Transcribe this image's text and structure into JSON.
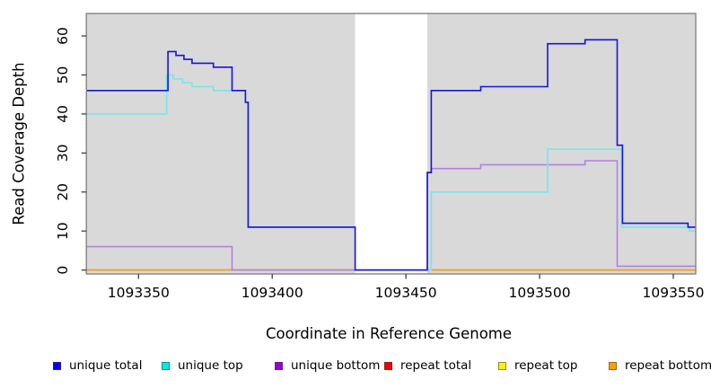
{
  "chart_data": {
    "type": "line",
    "subtype": "step",
    "title": "",
    "xlabel": "Coordinate in Reference Genome",
    "ylabel": "Read Coverage Depth",
    "x_ticks": [
      1093350,
      1093400,
      1093450,
      1093500,
      1093550
    ],
    "y_ticks": [
      0,
      10,
      20,
      30,
      40,
      50,
      60
    ],
    "xlim": [
      1093330,
      1093558
    ],
    "ylim": [
      0,
      66
    ],
    "x_end": 1093558.4,
    "grid": false,
    "panel_bg": "#d9d9d9",
    "panel_border": "#7d7d7d",
    "no_data_region": [
      1093431,
      1093458
    ],
    "legend_position": "bottom",
    "legend": [
      {
        "label": "unique total",
        "color": "#0404f0"
      },
      {
        "label": "unique top",
        "color": "#00e8f0"
      },
      {
        "label": "unique bottom",
        "color": "#9b00d0"
      },
      {
        "label": "repeat total",
        "color": "#f40000"
      },
      {
        "label": "repeat top",
        "color": "#fdf200"
      },
      {
        "label": "repeat bottom",
        "color": "#ff9e00"
      }
    ],
    "series": [
      {
        "name": "repeat total",
        "line_color": "#d03050",
        "steps": [
          [
            1093330,
            0
          ]
        ]
      },
      {
        "name": "repeat top",
        "line_color": "#f0e428",
        "steps": [
          [
            1093330,
            0
          ]
        ]
      },
      {
        "name": "repeat bottom",
        "line_color": "#ff9d0c",
        "steps": [
          [
            1093330,
            0
          ]
        ]
      },
      {
        "name": "unique bottom",
        "line_color": "#b181e0",
        "steps": [
          [
            1093330,
            6
          ],
          [
            1093385,
            0
          ],
          [
            1093458,
            25
          ],
          [
            1093459.5,
            26
          ],
          [
            1093478,
            27
          ],
          [
            1093517,
            28
          ],
          [
            1093529,
            1
          ]
        ]
      },
      {
        "name": "unique top",
        "line_color": "#79e4ec",
        "steps": [
          [
            1093330,
            40
          ],
          [
            1093360.5,
            50
          ],
          [
            1093363,
            49
          ],
          [
            1093366.5,
            48
          ],
          [
            1093370,
            47
          ],
          [
            1093378,
            46
          ],
          [
            1093390,
            43
          ],
          [
            1093391,
            11
          ],
          [
            1093431,
            0
          ],
          [
            1093459.5,
            20
          ],
          [
            1093503,
            31
          ],
          [
            1093530.7,
            11
          ],
          [
            1093556,
            10
          ]
        ]
      },
      {
        "name": "unique total",
        "line_color": "#1414e0",
        "steps": [
          [
            1093330,
            46
          ],
          [
            1093361,
            56
          ],
          [
            1093364,
            55
          ],
          [
            1093367,
            54
          ],
          [
            1093370,
            53
          ],
          [
            1093378,
            52
          ],
          [
            1093385,
            46
          ],
          [
            1093390,
            43
          ],
          [
            1093391,
            11
          ],
          [
            1093431,
            0
          ],
          [
            1093458,
            25
          ],
          [
            1093459.5,
            46
          ],
          [
            1093478,
            47
          ],
          [
            1093503,
            58
          ],
          [
            1093517,
            59
          ],
          [
            1093529,
            32
          ],
          [
            1093531,
            12
          ],
          [
            1093555.5,
            11
          ]
        ]
      }
    ]
  }
}
